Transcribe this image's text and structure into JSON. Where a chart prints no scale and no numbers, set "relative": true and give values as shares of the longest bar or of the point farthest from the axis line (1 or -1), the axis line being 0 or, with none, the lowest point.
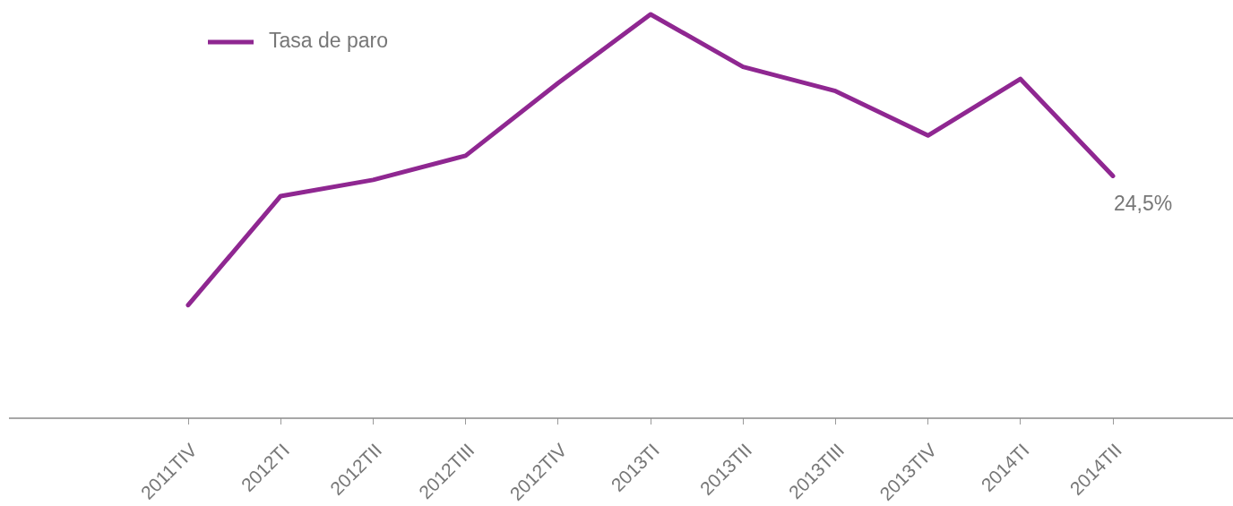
{
  "chart_data": {
    "type": "line",
    "relative": true,
    "categories": [
      "2011TIV",
      "2012TI",
      "2012TII",
      "2012TIII",
      "2012TIV",
      "2013TI",
      "2013TII",
      "2013TIII",
      "2013TIV",
      "2014TI",
      "2014TII"
    ],
    "series": [
      {
        "name": "Tasa de paro",
        "color": "#8f2791",
        "values": [
          0.28,
          0.55,
          0.59,
          0.65,
          0.83,
          1,
          0.87,
          0.81,
          0.7,
          0.84,
          0.6
        ]
      }
    ],
    "annotations": [
      {
        "text": "24,5%",
        "x": "2014TII",
        "y": 0.6
      }
    ],
    "legend": "top left",
    "marker": "none"
  }
}
